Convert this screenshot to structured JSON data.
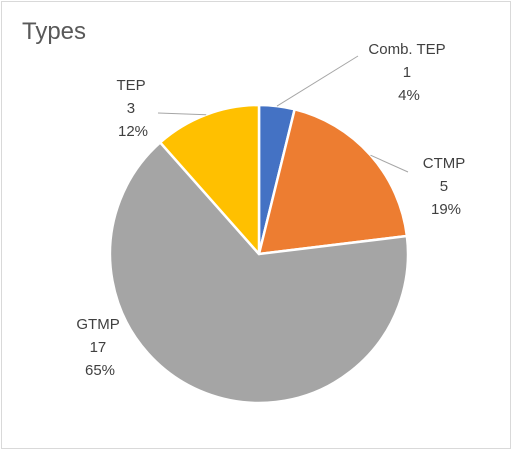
{
  "chart_data": {
    "type": "pie",
    "title": "Types",
    "start_angle_deg": 0,
    "direction": "clockwise",
    "slices": [
      {
        "name": "Comb. TEP",
        "value": 1,
        "percent": "4%",
        "color": "#4472c4"
      },
      {
        "name": "CTMP",
        "value": 5,
        "percent": "19%",
        "color": "#ed7d31"
      },
      {
        "name": "GTMP",
        "value": 17,
        "percent": "65%",
        "color": "#a5a5a5"
      },
      {
        "name": "TEP",
        "value": 3,
        "percent": "12%",
        "color": "#ffc000"
      }
    ]
  }
}
